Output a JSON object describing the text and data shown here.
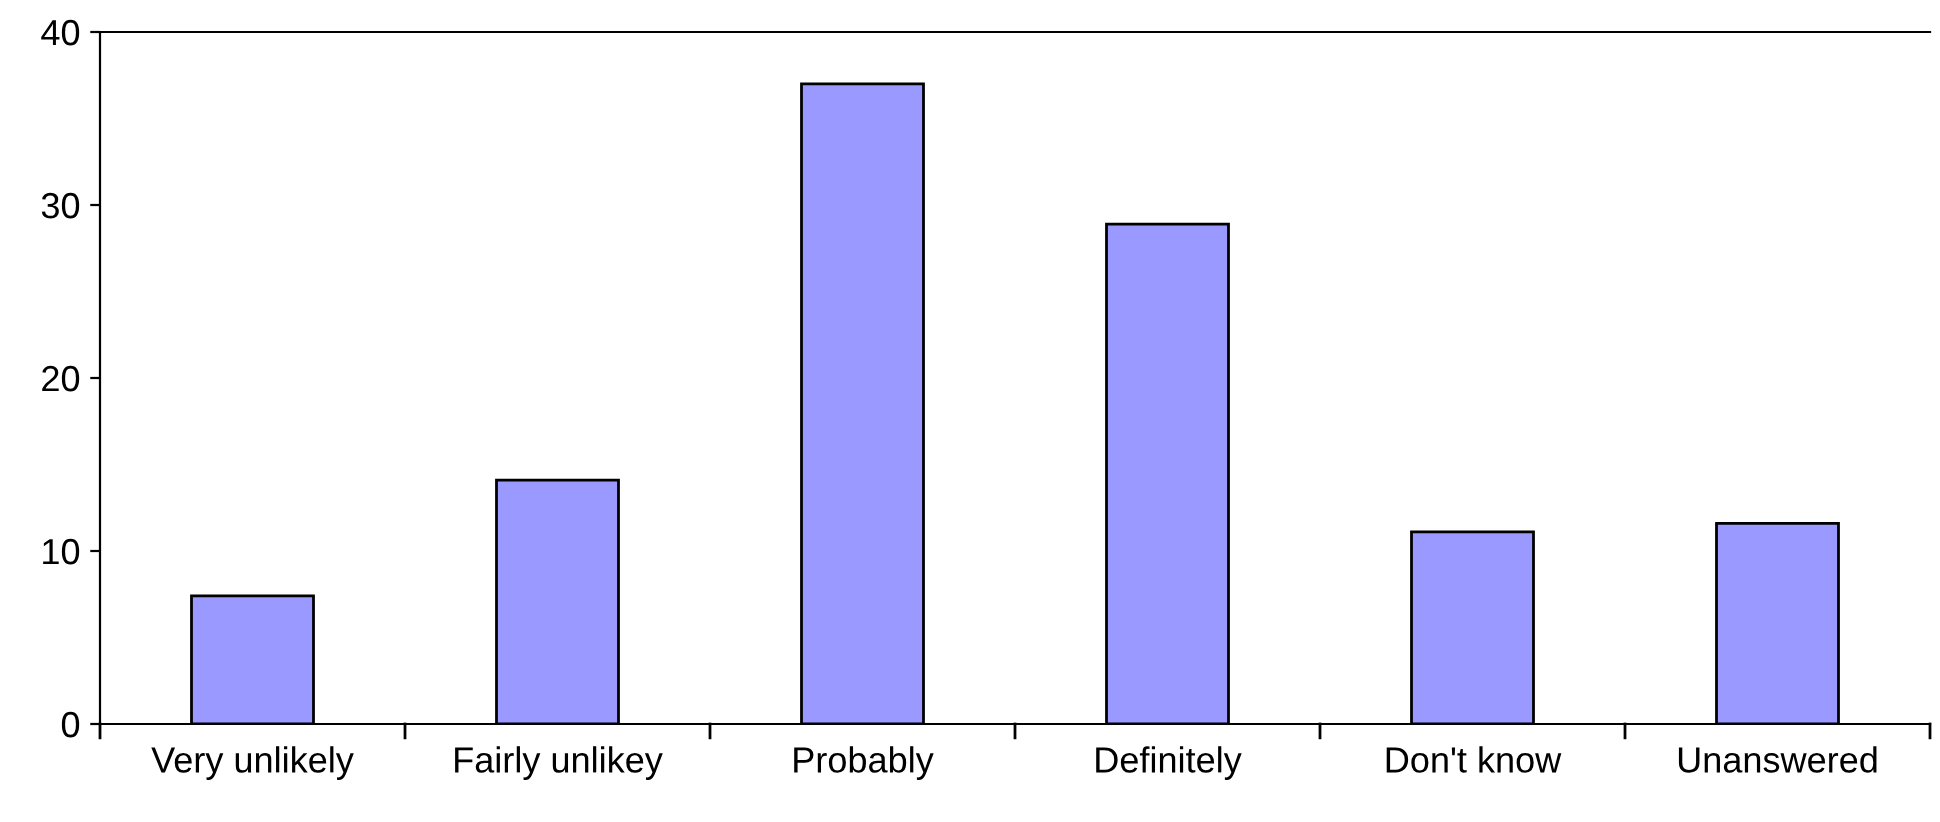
{
  "chart_data": {
    "type": "bar",
    "categories": [
      "Very unlikely",
      "Fairly unlikey",
      "Probably",
      "Definitely",
      "Don't know",
      "Unanswered"
    ],
    "values": [
      7.4,
      14.1,
      37.0,
      28.9,
      11.1,
      11.6
    ],
    "color": "#9999ff",
    "ylim": [
      0,
      40
    ],
    "yticks": [
      0,
      10,
      20,
      30,
      40
    ],
    "grid": false,
    "legend": false
  }
}
